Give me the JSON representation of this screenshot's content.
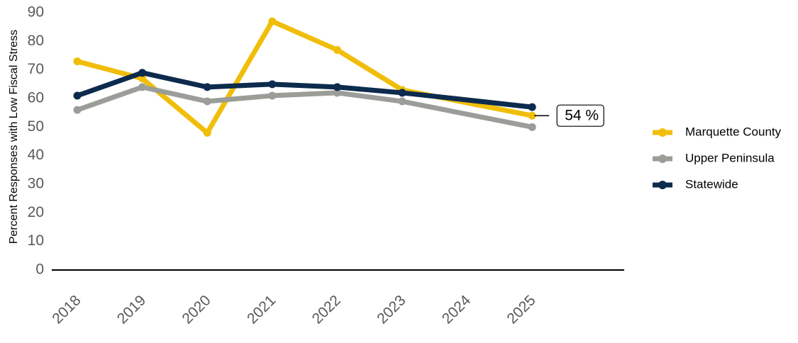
{
  "chart_data": {
    "type": "line",
    "title": "",
    "xlabel": "",
    "ylabel": "Percent Responses with Low Fiscal Stress",
    "categories": [
      "2018",
      "2019",
      "2020",
      "2021",
      "2022",
      "2023",
      "2024",
      "2025"
    ],
    "ylim": [
      0,
      90
    ],
    "yticks": [
      "0",
      "10",
      "20",
      "30",
      "40",
      "50",
      "60",
      "70",
      "80",
      "90"
    ],
    "grid": false,
    "legend_position": "right",
    "series": [
      {
        "name": "Marquette County",
        "color": "#F0BE0A",
        "values": [
          73,
          67,
          48,
          87,
          77,
          63,
          null,
          54
        ]
      },
      {
        "name": "Upper Peninsula",
        "color": "#9A9D98",
        "values": [
          56,
          64,
          59,
          61,
          62,
          59,
          null,
          50
        ]
      },
      {
        "name": "Statewide",
        "color": "#0C2B4D",
        "values": [
          61,
          69,
          64,
          65,
          64,
          62,
          null,
          57
        ]
      }
    ],
    "annotation": {
      "label": "54 %",
      "series": "Marquette County",
      "category": "2025"
    }
  }
}
